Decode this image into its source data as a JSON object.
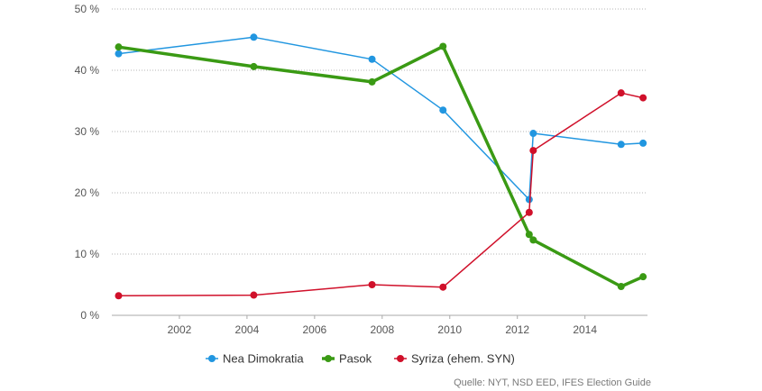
{
  "chart_data": {
    "type": "line",
    "title": "",
    "xlabel": "",
    "ylabel": "",
    "xlim": [
      2000.0,
      2015.85
    ],
    "ylim": [
      0,
      50
    ],
    "x_ticks": [
      2002,
      2004,
      2006,
      2008,
      2010,
      2012,
      2014
    ],
    "y_ticks": [
      0,
      10,
      20,
      30,
      40,
      50
    ],
    "y_tick_labels": [
      "0 %",
      "10 %",
      "20 %",
      "30 %",
      "40 %",
      "50 %"
    ],
    "grid": "horizontal-dotted",
    "legend_position": "bottom",
    "series": [
      {
        "name": "Nea Dimokratia",
        "color": "#2196e0",
        "line_width": 1.5,
        "x": [
          2000.2,
          2004.2,
          2007.7,
          2009.8,
          2012.35,
          2012.47,
          2015.07,
          2015.72
        ],
        "values": [
          42.7,
          45.4,
          41.8,
          33.5,
          18.9,
          29.7,
          27.9,
          28.1
        ]
      },
      {
        "name": "Pasok",
        "color": "#3a9a14",
        "line_width": 3.5,
        "x": [
          2000.2,
          2004.2,
          2007.7,
          2009.8,
          2012.35,
          2012.47,
          2015.07,
          2015.72
        ],
        "values": [
          43.8,
          40.6,
          38.1,
          43.9,
          13.2,
          12.3,
          4.7,
          6.3
        ]
      },
      {
        "name": "Syriza (ehem. SYN)",
        "color": "#d0102a",
        "line_width": 1.5,
        "x": [
          2000.2,
          2004.2,
          2007.7,
          2009.8,
          2012.35,
          2012.47,
          2015.07,
          2015.72
        ],
        "values": [
          3.2,
          3.3,
          5.0,
          4.6,
          16.8,
          26.9,
          36.3,
          35.5
        ]
      }
    ]
  },
  "source": "Quelle: NYT, NSD EED, IFES Election Guide"
}
